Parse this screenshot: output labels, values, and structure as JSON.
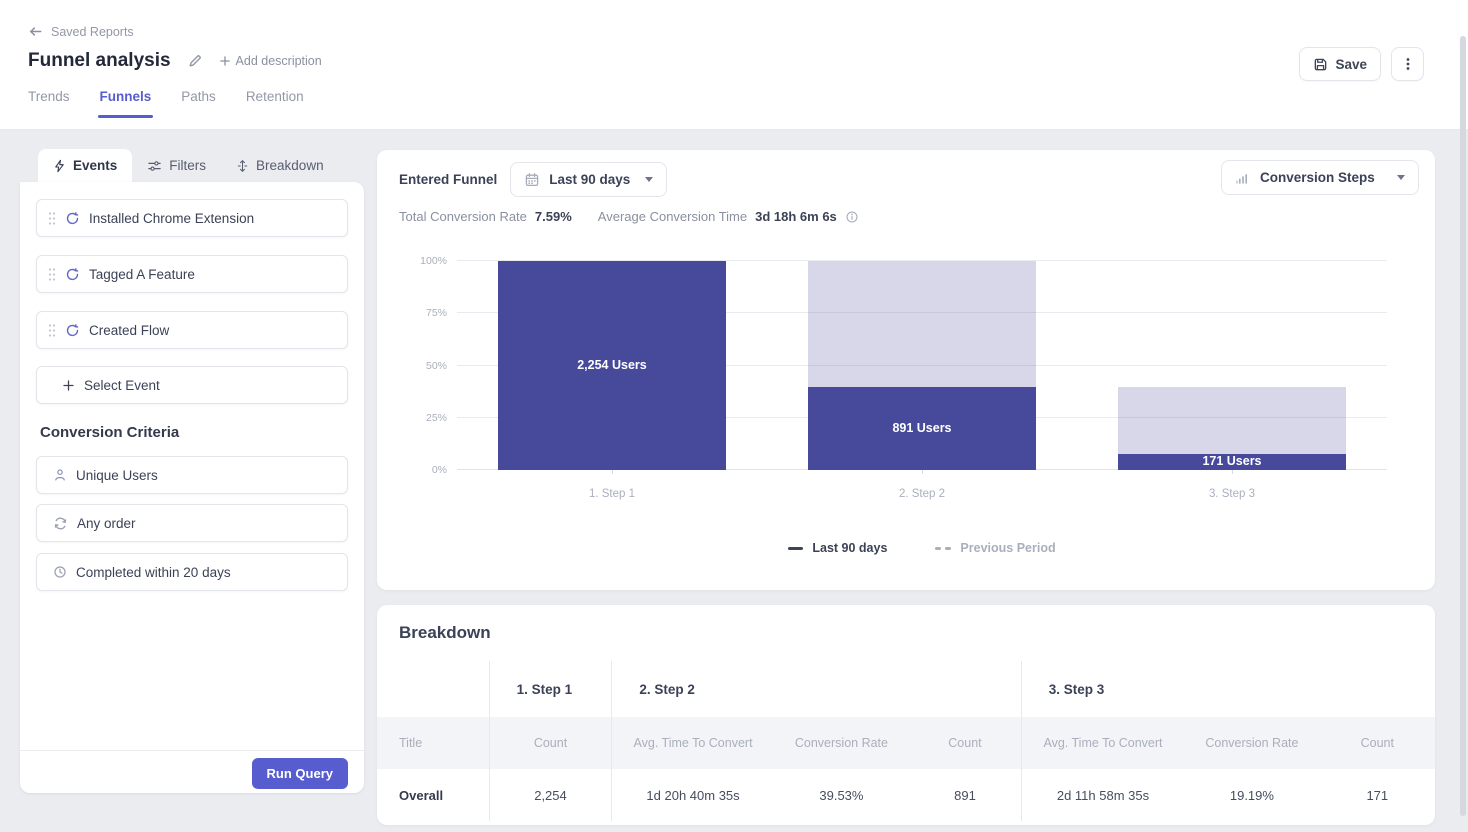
{
  "header": {
    "back_label": "Saved Reports",
    "title": "Funnel analysis",
    "add_description": "Add description",
    "save_label": "Save",
    "tabs": [
      {
        "label": "Trends",
        "active": false
      },
      {
        "label": "Funnels",
        "active": true
      },
      {
        "label": "Paths",
        "active": false
      },
      {
        "label": "Retention",
        "active": false
      }
    ]
  },
  "builder": {
    "tabs": [
      {
        "label": "Events",
        "icon": "lightning-icon",
        "active": true
      },
      {
        "label": "Filters",
        "icon": "sliders-icon",
        "active": false
      },
      {
        "label": "Breakdown",
        "icon": "split-arrows-icon",
        "active": false
      }
    ],
    "events": [
      "Installed Chrome Extension",
      "Tagged A Feature",
      "Created Flow"
    ],
    "select_event_label": "Select Event",
    "conversion": {
      "heading": "Conversion Criteria",
      "items": [
        {
          "label": "Unique Users",
          "icon": "user-icon"
        },
        {
          "label": "Any order",
          "icon": "cycle-icon"
        },
        {
          "label": "Completed within 20 days",
          "icon": "clock-icon"
        }
      ]
    },
    "run_query_label": "Run Query"
  },
  "chart_panel": {
    "title": "Entered Funnel",
    "date_range": "Last 90 days",
    "view_selector": "Conversion Steps",
    "stats": {
      "rate_label": "Total Conversion Rate",
      "rate_value": "7.59%",
      "time_label": "Average Conversion Time",
      "time_value": "3d 18h 6m 6s"
    },
    "legend": [
      {
        "label": "Last 90 days",
        "style": "solid"
      },
      {
        "label": "Previous Period",
        "style": "dashed"
      }
    ]
  },
  "chart_data": {
    "type": "bar",
    "title": "Entered Funnel",
    "categories": [
      "1. Step 1",
      "2. Step 2",
      "3. Step 3"
    ],
    "series": [
      {
        "name": "Converted users",
        "counts": [
          2254,
          891,
          171
        ],
        "values_pct": [
          100,
          39.53,
          7.59
        ],
        "labels": [
          "2,254 Users",
          "891 Users",
          "171 Users"
        ],
        "color": "#474A9B"
      },
      {
        "name": "Entered step (total)",
        "values_pct": [
          100,
          100,
          39.53
        ],
        "color": "rgba(71,74,155,0.22)"
      }
    ],
    "y_ticks": [
      "100%",
      "75%",
      "50%",
      "25%",
      "0%"
    ],
    "y_gridlines": [
      0,
      25,
      50,
      75,
      100
    ],
    "ylim": [
      0,
      100
    ],
    "grid": true,
    "legend_position": "bottom"
  },
  "breakdown": {
    "title": "Breakdown",
    "step_headers": [
      "1. Step 1",
      "2. Step 2",
      "3. Step 3"
    ],
    "columns": [
      "Title",
      "Count",
      "Avg. Time To Convert",
      "Conversion Rate",
      "Count",
      "Avg. Time To Convert",
      "Conversion Rate",
      "Count"
    ],
    "rows": [
      [
        "Overall",
        "2,254",
        "1d 20h 40m 35s",
        "39.53%",
        "891",
        "2d 11h 58m 35s",
        "19.19%",
        "171"
      ]
    ]
  },
  "colors": {
    "accent": "#575CCE",
    "bar_dark": "#474A9B",
    "bar_light": "rgba(71,74,155,0.22)",
    "page_bg": "#EBECF0",
    "muted_text": "#A9AFBC"
  }
}
